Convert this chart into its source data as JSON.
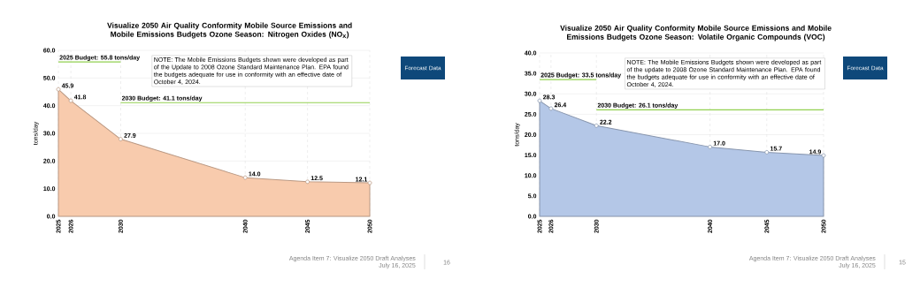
{
  "chart_data": [
    {
      "type": "area",
      "title": "Visualize 2050 Air Quality Conformity Mobile Source Emissions and Mobile Emissions Budgets Ozone Season: Nitrogen Oxides (NO$_{X}$)",
      "ylabel": "tons/day",
      "x": [
        2025,
        2026,
        2030,
        2040,
        2045,
        2050
      ],
      "xlim": [
        2025,
        2050
      ],
      "xticks": [
        2025,
        2026,
        2030,
        2040,
        2045,
        2050
      ],
      "ylim": [
        0,
        60
      ],
      "yticks": [
        {
          "value": 0,
          "label": "0.0"
        },
        {
          "value": 10,
          "label": "10.0"
        },
        {
          "value": 20,
          "label": "20.0"
        },
        {
          "value": 30,
          "label": "30.0"
        },
        {
          "value": 40,
          "label": "40.0"
        },
        {
          "value": 50,
          "label": "50.0"
        },
        {
          "value": 60,
          "label": "60.0"
        }
      ],
      "grid": true,
      "marker": "circle",
      "series": [
        {
          "color": "#f8cbad",
          "values": [
            45.9,
            41.8,
            27.9,
            14.0,
            12.5,
            12.1
          ],
          "value_labels": [
            "45.9",
            "41.8",
            "27.9",
            "14.0",
            "12.5",
            "12.1"
          ]
        },
        {
          "type": "line",
          "name": "2025 Budget: 55.8 tons/day",
          "x": [
            2025,
            2030
          ],
          "values": [
            55.8,
            55.8
          ],
          "color": "#92d050",
          "marker": "none"
        },
        {
          "type": "line",
          "name": "2030 Budget: 41.1 tons/day",
          "x": [
            2030,
            2050
          ],
          "values": [
            41.1,
            41.1
          ],
          "color": "#92d050",
          "marker": "none"
        }
      ],
      "annotations": [
        "NOTE: The Mobile Emissions Budgets shown were developed as part of the Update to 2008 Ozone Standard Maintenance Plan. EPA found the budgets adequate for use in conformity with an effective date of October 4, 2024.",
        "Forecast Data",
        "Agenda Item 7: Visualize 2050 Draft Analyses",
        "July 16, 2025",
        "16"
      ]
    },
    {
      "type": "area",
      "title": "Visualize 2050 Air Quality Conformity Mobile Source Emissions and Mobile Emissions Budgets Ozone Season: Volatile Organic Compounds (VOC)",
      "ylabel": "tons/day",
      "x": [
        2025,
        2026,
        2030,
        2040,
        2045,
        2050
      ],
      "xlim": [
        2025,
        2050
      ],
      "xticks": [
        2025,
        2026,
        2030,
        2040,
        2045,
        2050
      ],
      "ylim": [
        0,
        40
      ],
      "yticks": [
        {
          "value": 0,
          "label": "0.0"
        },
        {
          "value": 5,
          "label": "5.0"
        },
        {
          "value": 10,
          "label": "10.0"
        },
        {
          "value": 15,
          "label": "15.0"
        },
        {
          "value": 20,
          "label": "20.0"
        },
        {
          "value": 25,
          "label": "25.0"
        },
        {
          "value": 30,
          "label": "30.0"
        },
        {
          "value": 35,
          "label": "35.0"
        },
        {
          "value": 40,
          "label": "40.0"
        }
      ],
      "grid": true,
      "marker": "circle",
      "series": [
        {
          "color": "#b4c7e7",
          "values": [
            28.3,
            26.4,
            22.2,
            17.0,
            15.7,
            14.9
          ],
          "value_labels": [
            "28.3",
            "26.4",
            "22.2",
            "17.0",
            "15.7",
            "14.9"
          ]
        },
        {
          "type": "line",
          "name": "2025 Budget: 33.5 tons/day",
          "x": [
            2025,
            2030
          ],
          "values": [
            33.5,
            33.5
          ],
          "color": "#92d050",
          "marker": "none"
        },
        {
          "type": "line",
          "name": "2030 Budget: 26.1 tons/day",
          "x": [
            2030,
            2050
          ],
          "values": [
            26.1,
            26.1
          ],
          "color": "#92d050",
          "marker": "none"
        }
      ],
      "annotations": [
        "NOTE: The Mobile Emissions Budgets shown were developed as part of the update to 2008 Ozone Standard Maintenance Plan. EPA found the budgets adequate for use in conformity with an effective date of October 4, 2024.",
        "Forecast Data",
        "Agenda Item 7: Visualize 2050 Draft Analyses",
        "July 16, 2025",
        "15"
      ]
    }
  ]
}
